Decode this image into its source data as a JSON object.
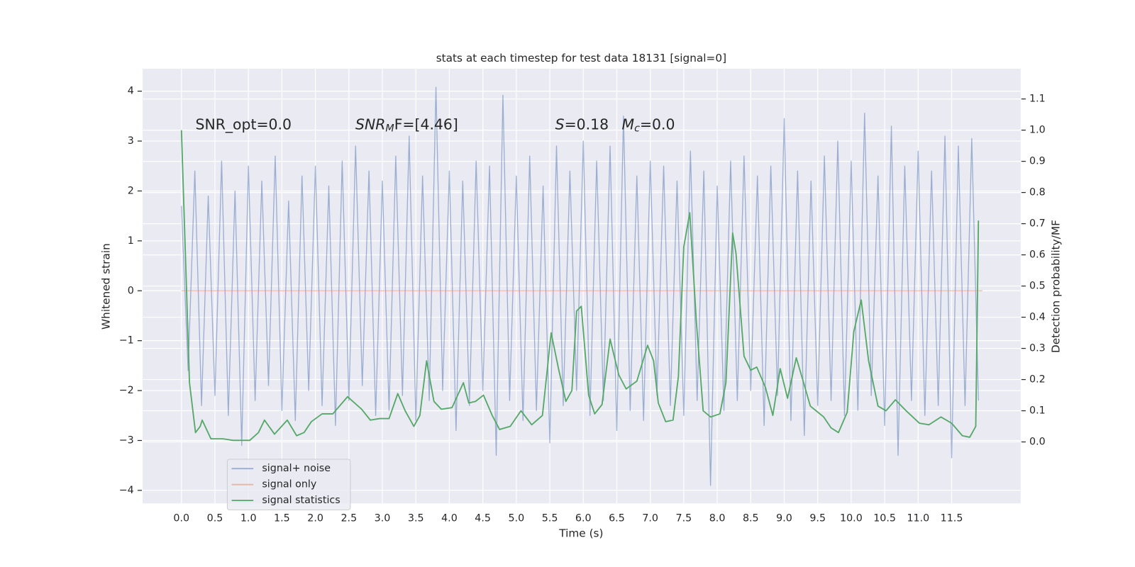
{
  "chart_data": {
    "type": "line",
    "title": "stats at each timestep for test data 18131 [signal=0]",
    "xlabel": "Time (s)",
    "ylabel": "Whitened strain",
    "y2label": "Detection probability/MF",
    "xlim": [
      -0.58,
      12.53
    ],
    "ylim": [
      -4.26,
      4.45
    ],
    "y2lim": [
      -0.197,
      1.197
    ],
    "xticks": [
      {
        "value": 0,
        "label": "0.0"
      },
      0.5,
      {
        "value": 1,
        "label": "1.0"
      },
      1.5,
      {
        "value": 2,
        "label": "2.0"
      },
      2.5,
      {
        "value": 3,
        "label": "3.0"
      },
      3.5,
      {
        "value": 4,
        "label": "4.0"
      },
      4.5,
      {
        "value": 5,
        "label": "5.0"
      },
      5.5,
      {
        "value": 6,
        "label": "6.0"
      },
      6.5,
      {
        "value": 7,
        "label": "7.0"
      },
      7.5,
      {
        "value": 8,
        "label": "8.0"
      },
      8.5,
      {
        "value": 9,
        "label": "9.0"
      },
      9.5,
      {
        "value": 10,
        "label": "10.0"
      },
      10.5,
      {
        "value": 11,
        "label": "11.0"
      },
      11.5
    ],
    "yticks": [
      {
        "value": -4,
        "label": "−4"
      },
      {
        "value": -3,
        "label": "−3"
      },
      {
        "value": -2,
        "label": "−2"
      },
      {
        "value": -1,
        "label": "−1"
      },
      0,
      1,
      2,
      3,
      4
    ],
    "y2ticks": [
      {
        "value": 0,
        "label": "0.0"
      },
      0.1,
      0.2,
      0.3,
      0.4,
      0.5,
      0.6,
      0.7,
      0.8,
      0.9,
      {
        "value": 1,
        "label": "1.0"
      },
      1.1
    ],
    "grid": true,
    "legend": "lower left",
    "annotations": [
      [
        {
          "text": "SNR_opt=0.0",
          "style": "normal"
        }
      ],
      [
        {
          "text": "SNR",
          "style": "italic"
        },
        {
          "text": "M",
          "style": "italic-sub"
        },
        {
          "text": "F=[4.46]",
          "style": "normal"
        }
      ],
      [
        {
          "text": "S",
          "style": "italic"
        },
        {
          "text": "=0.18",
          "style": "normal"
        }
      ],
      [
        {
          "text": "M",
          "style": "italic"
        },
        {
          "text": "c",
          "style": "italic-sub"
        },
        {
          "text": "=0.0",
          "style": "normal"
        }
      ]
    ],
    "series": [
      {
        "name": "signal+ noise",
        "color": "#4c72b0",
        "alpha": 0.5,
        "axis": "y",
        "x": [
          0,
          0.1,
          0.2,
          0.3,
          0.4,
          0.5,
          0.6,
          0.7,
          0.8,
          0.9,
          1,
          1.1,
          1.2,
          1.3,
          1.4,
          1.5,
          1.6,
          1.7,
          1.8,
          1.9,
          2,
          2.1,
          2.2,
          2.3,
          2.4,
          2.5,
          2.6,
          2.7,
          2.8,
          2.9,
          3,
          3.1,
          3.2,
          3.3,
          3.4,
          3.5,
          3.6,
          3.7,
          3.8,
          3.9,
          4,
          4.1,
          4.2,
          4.3,
          4.4,
          4.5,
          4.6,
          4.7,
          4.8,
          4.9,
          5,
          5.1,
          5.2,
          5.3,
          5.4,
          5.5,
          5.6,
          5.7,
          5.8,
          5.9,
          6,
          6.1,
          6.2,
          6.3,
          6.4,
          6.5,
          6.6,
          6.7,
          6.8,
          6.9,
          7,
          7.1,
          7.2,
          7.3,
          7.4,
          7.5,
          7.6,
          7.7,
          7.8,
          7.9,
          8,
          8.1,
          8.2,
          8.3,
          8.4,
          8.5,
          8.6,
          8.7,
          8.8,
          8.9,
          9,
          9.1,
          9.2,
          9.3,
          9.4,
          9.5,
          9.6,
          9.7,
          9.8,
          9.9,
          10,
          10.1,
          10.2,
          10.3,
          10.4,
          10.5,
          10.6,
          10.7,
          10.8,
          10.9,
          11,
          11.1,
          11.2,
          11.3,
          11.4,
          11.5,
          11.6,
          11.7,
          11.8,
          11.9
        ],
        "values": [
          1.7,
          -1.6,
          2.4,
          -2.3,
          1.9,
          -2.1,
          2.6,
          -2.5,
          2.0,
          -3.1,
          2.5,
          -2.2,
          2.2,
          -1.9,
          2.7,
          -2.4,
          1.8,
          -2.6,
          2.3,
          -2.0,
          2.5,
          -2.3,
          2.1,
          -2.7,
          2.6,
          -2.2,
          2.9,
          -1.9,
          2.4,
          -2.5,
          2.2,
          -2.4,
          2.7,
          -2.1,
          3.1,
          -2.6,
          2.3,
          -2.2,
          4.08,
          -2.0,
          2.4,
          -2.8,
          2.2,
          -2.3,
          2.6,
          -2.0,
          2.5,
          -3.3,
          3.92,
          -2.2,
          2.3,
          -2.6,
          2.7,
          -2.4,
          2.1,
          -3.05,
          2.9,
          -2.3,
          2.4,
          -2.0,
          3.0,
          -2.5,
          2.6,
          -2.2,
          2.9,
          -2.8,
          3.5,
          -2.4,
          2.3,
          -2.6,
          2.6,
          -2.1,
          2.5,
          -2.3,
          2.2,
          -2.5,
          2.8,
          -2.2,
          2.4,
          -3.9,
          2.1,
          -2.4,
          2.6,
          -2.2,
          2.7,
          -2.0,
          2.3,
          -2.7,
          2.5,
          -2.1,
          3.45,
          -2.6,
          2.4,
          -2.9,
          2.2,
          -2.3,
          2.7,
          -2.2,
          3.0,
          -2.5,
          2.6,
          -2.4,
          3.56,
          -2.1,
          2.3,
          -2.7,
          3.3,
          -3.3,
          2.5,
          -2.2,
          2.8,
          -2.5,
          2.4,
          -2.3,
          3.1,
          -3.35,
          2.9,
          -2.3,
          3.05,
          -2.2
        ]
      },
      {
        "name": "signal only",
        "color": "#dd8452",
        "alpha": 0.5,
        "axis": "y",
        "x": [
          0,
          11.96
        ],
        "values": [
          0,
          0
        ]
      },
      {
        "name": "signal statistics",
        "color": "#55a868",
        "alpha": 1,
        "axis": "y2",
        "x": [
          0,
          0.12,
          0.21,
          0.28,
          0.31,
          0.44,
          0.62,
          0.77,
          1.02,
          1.15,
          1.24,
          1.39,
          1.58,
          1.72,
          1.83,
          1.94,
          2.1,
          2.26,
          2.48,
          2.69,
          2.82,
          2.96,
          3.1,
          3.23,
          3.34,
          3.47,
          3.56,
          3.66,
          3.77,
          3.88,
          4.04,
          4.21,
          4.29,
          4.39,
          4.51,
          4.64,
          4.75,
          4.91,
          5.07,
          5.23,
          5.39,
          5.52,
          5.63,
          5.74,
          5.83,
          5.9,
          5.97,
          6.08,
          6.17,
          6.28,
          6.4,
          6.53,
          6.64,
          6.8,
          6.96,
          7.05,
          7.12,
          7.23,
          7.34,
          7.42,
          7.5,
          7.59,
          7.69,
          7.79,
          7.9,
          8.04,
          8.13,
          8.23,
          8.28,
          8.4,
          8.5,
          8.59,
          8.72,
          8.83,
          8.94,
          9.05,
          9.18,
          9.29,
          9.39,
          9.59,
          9.7,
          9.81,
          9.94,
          10.04,
          10.15,
          10.26,
          10.4,
          10.52,
          10.66,
          10.82,
          11.02,
          11.16,
          11.34,
          11.5,
          11.66,
          11.77,
          11.86,
          11.9
        ],
        "values": [
          1.0,
          0.19,
          0.03,
          0.05,
          0.07,
          0.01,
          0.01,
          0.005,
          0.005,
          0.03,
          0.07,
          0.025,
          0.07,
          0.02,
          0.03,
          0.065,
          0.09,
          0.09,
          0.145,
          0.105,
          0.07,
          0.075,
          0.075,
          0.155,
          0.1,
          0.05,
          0.085,
          0.26,
          0.13,
          0.105,
          0.11,
          0.19,
          0.125,
          0.13,
          0.15,
          0.085,
          0.04,
          0.05,
          0.1,
          0.055,
          0.085,
          0.35,
          0.235,
          0.13,
          0.165,
          0.42,
          0.435,
          0.15,
          0.09,
          0.12,
          0.33,
          0.215,
          0.17,
          0.195,
          0.31,
          0.26,
          0.125,
          0.065,
          0.07,
          0.21,
          0.625,
          0.735,
          0.38,
          0.1,
          0.08,
          0.09,
          0.19,
          0.67,
          0.605,
          0.275,
          0.23,
          0.24,
          0.175,
          0.085,
          0.235,
          0.14,
          0.27,
          0.19,
          0.115,
          0.08,
          0.045,
          0.03,
          0.095,
          0.355,
          0.455,
          0.26,
          0.115,
          0.1,
          0.135,
          0.1,
          0.06,
          0.055,
          0.08,
          0.06,
          0.02,
          0.015,
          0.05,
          0.71
        ]
      }
    ]
  }
}
